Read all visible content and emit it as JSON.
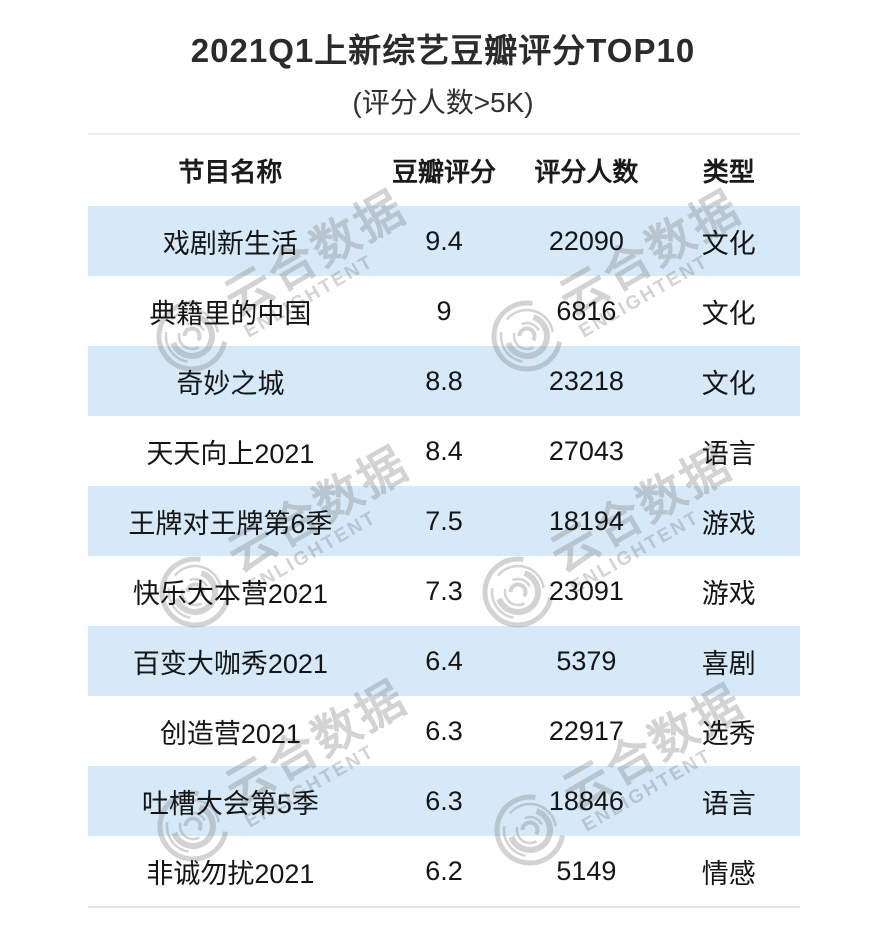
{
  "page": {
    "title": "2021Q1上新综艺豆瓣评分TOP10",
    "subtitle": "(评分人数>5K)"
  },
  "chart_data": {
    "type": "table",
    "title": "2021Q1上新综艺豆瓣评分TOP10",
    "subtitle": "(评分人数>5K)",
    "columns": [
      "节目名称",
      "豆瓣评分",
      "评分人数",
      "类型"
    ],
    "rows": [
      {
        "name": "戏剧新生活",
        "rating": 9.4,
        "raters": 22090,
        "genre": "文化"
      },
      {
        "name": "典籍里的中国",
        "rating": 9,
        "raters": 6816,
        "genre": "文化"
      },
      {
        "name": "奇妙之城",
        "rating": 8.8,
        "raters": 23218,
        "genre": "文化"
      },
      {
        "name": "天天向上2021",
        "rating": 8.4,
        "raters": 27043,
        "genre": "语言"
      },
      {
        "name": "王牌对王牌第6季",
        "rating": 7.5,
        "raters": 18194,
        "genre": "游戏"
      },
      {
        "name": "快乐大本营2021",
        "rating": 7.3,
        "raters": 23091,
        "genre": "游戏"
      },
      {
        "name": "百变大咖秀2021",
        "rating": 6.4,
        "raters": 5379,
        "genre": "喜剧"
      },
      {
        "name": "创造营2021",
        "rating": 6.3,
        "raters": 22917,
        "genre": "选秀"
      },
      {
        "name": "吐槽大会第5季",
        "rating": 6.3,
        "raters": 18846,
        "genre": "语言"
      },
      {
        "name": "非诚勿扰2021",
        "rating": 6.2,
        "raters": 5149,
        "genre": "情感"
      }
    ],
    "layout": {
      "alignment": "center",
      "zebra": "rows 1,3,5,7,9 highlighted",
      "legend_position": "none",
      "grid": "off"
    }
  },
  "watermark": {
    "cn": "云合数据",
    "en": "ENLIGHTENT"
  },
  "colors": {
    "row_highlight": "#d6e9f8",
    "divider_top": "#ececec",
    "divider_bottom": "#e2e2e2",
    "title_text": "#2b2b2b",
    "body_text": "#151515",
    "watermark_gray": "#d0d0d0"
  }
}
